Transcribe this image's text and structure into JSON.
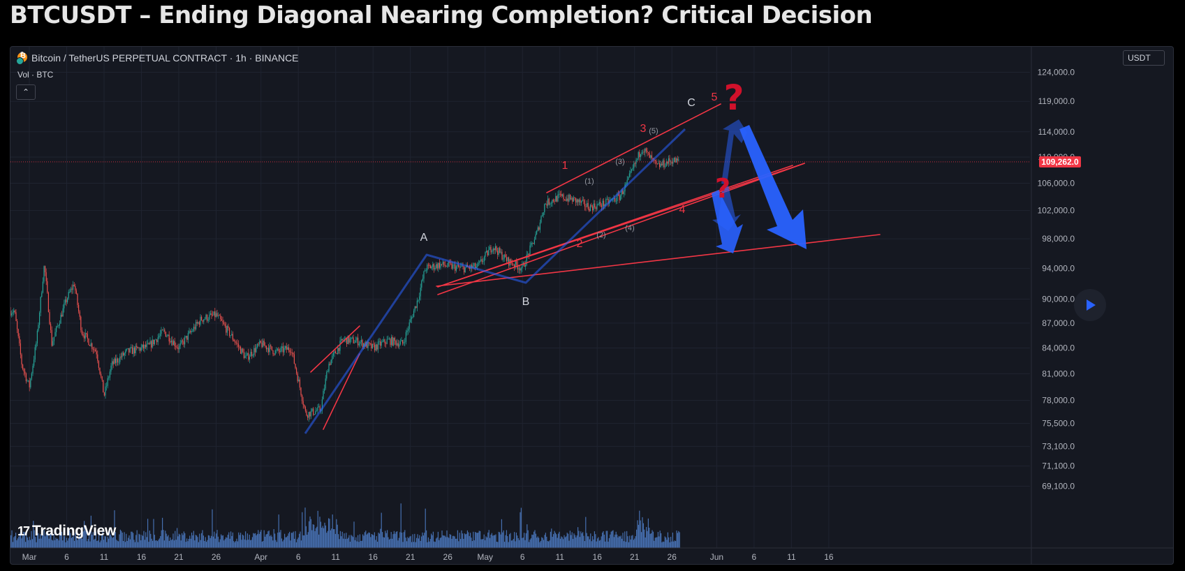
{
  "page": {
    "title": "BTCUSDT – Ending Diagonal Nearing Completion? Critical Decision"
  },
  "legend": {
    "symbol": "Bitcoin / TetherUS PERPETUAL CONTRACT · 1h · BINANCE",
    "volume": "Vol · BTC",
    "currency": "USDT",
    "collapse_icon": "chevron-up-icon"
  },
  "branding": {
    "logo_text": "TradingView",
    "logo_icon": "tradingview-logo-icon"
  },
  "colors": {
    "background": "#151821",
    "grid": "#1f2330",
    "up": "#26a69a",
    "down": "#ef5350",
    "wave_line": "#f23645",
    "projection": "#2962ff",
    "volume": "#4f7fc9",
    "price_tag": "#f23645"
  },
  "chart_data": {
    "type": "candlestick",
    "timeframe": "1h",
    "x_axis": {
      "tick_labels": [
        "Mar",
        "6",
        "11",
        "16",
        "21",
        "26",
        "Apr",
        "6",
        "11",
        "16",
        "21",
        "26",
        "May",
        "6",
        "11",
        "16",
        "21",
        "26",
        "Jun",
        "6",
        "11",
        "16"
      ]
    },
    "y_axis": {
      "tick_labels": [
        "124,000.0",
        "119,000.0",
        "114,000.0",
        "110,000.0",
        "106,000.0",
        "102,000.0",
        "98,000.0",
        "94,000.0",
        "90,000.0",
        "87,000.0",
        "84,000.0",
        "81,000.0",
        "78,000.0",
        "75,500.0",
        "73,100.0",
        "71,100.0",
        "69,100.0"
      ],
      "scale": "log"
    },
    "last_price": {
      "value": 109262,
      "label": "109,262.0"
    },
    "price_path": [
      [
        "2025-02-27",
        88500
      ],
      [
        "2025-02-28",
        82000
      ],
      [
        "2025-03-01",
        79500
      ],
      [
        "2025-03-02",
        85000
      ],
      [
        "2025-03-03",
        94500
      ],
      [
        "2025-03-04",
        84500
      ],
      [
        "2025-03-06",
        90000
      ],
      [
        "2025-03-07",
        92000
      ],
      [
        "2025-03-08",
        86000
      ],
      [
        "2025-03-10",
        83500
      ],
      [
        "2025-03-11",
        78500
      ],
      [
        "2025-03-12",
        82000
      ],
      [
        "2025-03-14",
        83500
      ],
      [
        "2025-03-17",
        84200
      ],
      [
        "2025-03-19",
        86000
      ],
      [
        "2025-03-21",
        84000
      ],
      [
        "2025-03-24",
        87500
      ],
      [
        "2025-03-26",
        88000
      ],
      [
        "2025-03-28",
        85500
      ],
      [
        "2025-03-30",
        82800
      ],
      [
        "2025-04-01",
        84500
      ],
      [
        "2025-04-03",
        83500
      ],
      [
        "2025-04-05",
        84000
      ],
      [
        "2025-04-07",
        76500
      ],
      [
        "2025-04-09",
        77000
      ],
      [
        "2025-04-10",
        82000
      ],
      [
        "2025-04-12",
        85000
      ],
      [
        "2025-04-14",
        84800
      ],
      [
        "2025-04-16",
        84000
      ],
      [
        "2025-04-18",
        84900
      ],
      [
        "2025-04-20",
        84500
      ],
      [
        "2025-04-22",
        90000
      ],
      [
        "2025-04-23",
        94000
      ],
      [
        "2025-04-25",
        94500
      ],
      [
        "2025-04-28",
        94000
      ],
      [
        "2025-04-30",
        94200
      ],
      [
        "2025-05-02",
        97000
      ],
      [
        "2025-05-04",
        95000
      ],
      [
        "2025-05-06",
        94000
      ],
      [
        "2025-05-08",
        99000
      ],
      [
        "2025-05-09",
        103000
      ],
      [
        "2025-05-11",
        104000
      ],
      [
        "2025-05-13",
        103500
      ],
      [
        "2025-05-15",
        102500
      ],
      [
        "2025-05-17",
        103000
      ],
      [
        "2025-05-19",
        104000
      ],
      [
        "2025-05-20",
        106000
      ],
      [
        "2025-05-22",
        111500
      ],
      [
        "2025-05-24",
        108500
      ],
      [
        "2025-05-26",
        109500
      ],
      [
        "2025-05-27",
        109262
      ]
    ],
    "annotations": {
      "wave_labels": [
        {
          "text": "A",
          "color": "white"
        },
        {
          "text": "B",
          "color": "white"
        },
        {
          "text": "C",
          "color": "white"
        },
        {
          "text": "1",
          "color": "red"
        },
        {
          "text": "2",
          "color": "red"
        },
        {
          "text": "3",
          "color": "red"
        },
        {
          "text": "4",
          "color": "red"
        },
        {
          "text": "5",
          "color": "red"
        },
        {
          "text": "(1)",
          "color": "gray"
        },
        {
          "text": "(2)",
          "color": "gray"
        },
        {
          "text": "(3)",
          "color": "gray"
        },
        {
          "text": "(4)",
          "color": "gray"
        },
        {
          "text": "(5)",
          "color": "gray"
        }
      ],
      "question_marks": [
        "?",
        "?"
      ]
    }
  }
}
